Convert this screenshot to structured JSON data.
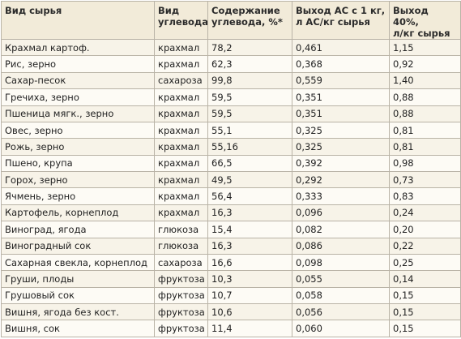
{
  "table": {
    "headers": [
      [
        "Вид сырья"
      ],
      [
        "Вид",
        "углевода"
      ],
      [
        "Содержание",
        "углевода, %*"
      ],
      [
        "Выход АС с 1 кг,",
        "л АС/кг сырья"
      ],
      [
        "Выход 40%,",
        "л/кг сырья"
      ]
    ],
    "rows": [
      [
        "Крахмал картоф.",
        "крахмал",
        "78,2",
        "0,461",
        "1,15"
      ],
      [
        "Рис, зерно",
        "крахмал",
        "62,3",
        "0,368",
        "0,92"
      ],
      [
        "Сахар-песок",
        "сахароза",
        "99,8",
        "0,559",
        "1,40"
      ],
      [
        "Гречиха, зерно",
        "крахмал",
        "59,5",
        "0,351",
        "0,88"
      ],
      [
        "Пшеница мягк., зерно",
        "крахмал",
        "59,5",
        "0,351",
        "0,88"
      ],
      [
        "Овес, зерно",
        "крахмал",
        "55,1",
        "0,325",
        "0,81"
      ],
      [
        "Рожь, зерно",
        "крахмал",
        "55,16",
        "0,325",
        "0,81"
      ],
      [
        "Пшено, крупа",
        "крахмал",
        "66,5",
        "0,392",
        "0,98"
      ],
      [
        "Горох, зерно",
        "крахмал",
        "49,5",
        "0,292",
        "0,73"
      ],
      [
        "Ячмень, зерно",
        "крахмал",
        "56,4",
        "0,333",
        "0,83"
      ],
      [
        "Картофель, корнеплод",
        "крахмал",
        "16,3",
        "0,096",
        "0,24"
      ],
      [
        "Виноград, ягода",
        "глюкоза",
        "15,4",
        "0,082",
        "0,20"
      ],
      [
        "Виноградный сок",
        "глюкоза",
        "16,3",
        "0,086",
        "0,22"
      ],
      [
        "Сахарная свекла, корнеплод",
        "сахароза",
        "16,6",
        "0,098",
        "0,25"
      ],
      [
        "Груши, плоды",
        "фруктоза",
        "10,3",
        "0,055",
        "0,14"
      ],
      [
        "Грушовый сок",
        "фруктоза",
        "10,7",
        "0,058",
        "0,15"
      ],
      [
        "Вишня, ягода без кост.",
        "фруктоза",
        "10,6",
        "0,056",
        "0,15"
      ],
      [
        "Вишня, сок",
        "фруктоза",
        "11,4",
        "0,060",
        "0,15"
      ]
    ]
  }
}
